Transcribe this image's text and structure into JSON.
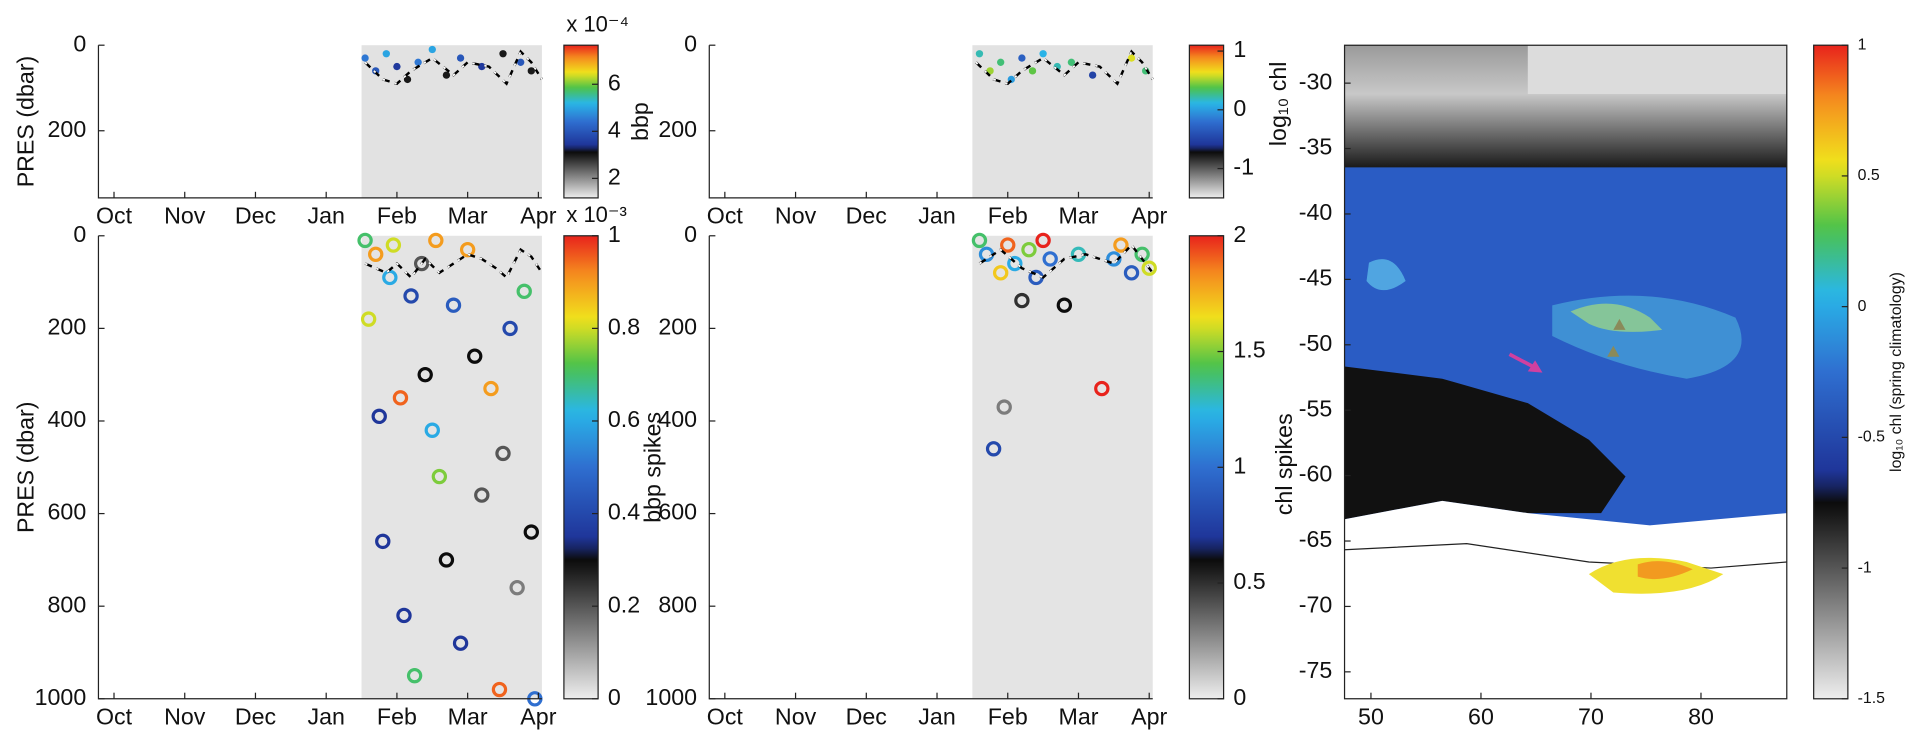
{
  "chart_data": [
    {
      "type": "scatter",
      "xlim": [
        -0.22,
        6.05
      ],
      "ylim": [
        0,
        357
      ],
      "xticks": [
        {
          "value": 0,
          "label": "Oct"
        },
        {
          "value": 1,
          "label": "Nov"
        },
        {
          "value": 2,
          "label": "Dec"
        },
        {
          "value": 3,
          "label": "Jan"
        },
        {
          "value": 4,
          "label": "Feb"
        },
        {
          "value": 5,
          "label": "Mar"
        },
        {
          "value": 6,
          "label": "Apr"
        }
      ],
      "yticks": [
        0,
        200
      ],
      "ylabel": "PRES (dbar)",
      "colorbar": {
        "label": "bbp",
        "multiplier": "x 10⁻⁴",
        "clim": [
          1.17,
          7.66
        ],
        "ticks": [
          2,
          4,
          6
        ]
      },
      "points": {
        "x": [
          3.55,
          3.7,
          3.85,
          4.0,
          4.15,
          4.3,
          4.5,
          4.7,
          4.9,
          5.2,
          5.5,
          5.75,
          5.9
        ],
        "y": [
          30,
          60,
          20,
          50,
          80,
          40,
          10,
          70,
          30,
          50,
          20,
          40,
          60
        ],
        "c": [
          4.5,
          4,
          5,
          3.5,
          3,
          4.5,
          5,
          3,
          4,
          3.5,
          3,
          4,
          3
        ]
      },
      "line": {
        "x": [
          3.55,
          3.8,
          4.0,
          4.2,
          4.5,
          4.8,
          5.0,
          5.3,
          5.55,
          5.75,
          5.9,
          6.05
        ],
        "y": [
          40,
          80,
          90,
          60,
          30,
          70,
          40,
          50,
          90,
          15,
          40,
          80
        ]
      }
    },
    {
      "type": "scatter",
      "xlim": [
        -0.22,
        6.05
      ],
      "ylim": [
        0,
        357
      ],
      "xticks": [
        {
          "value": 0,
          "label": "Oct"
        },
        {
          "value": 1,
          "label": "Nov"
        },
        {
          "value": 2,
          "label": "Dec"
        },
        {
          "value": 3,
          "label": "Jan"
        },
        {
          "value": 4,
          "label": "Feb"
        },
        {
          "value": 5,
          "label": "Mar"
        },
        {
          "value": 6,
          "label": "Apr"
        }
      ],
      "yticks": [
        0,
        200
      ],
      "colorbar": {
        "clim": [
          -1.5,
          1.1
        ],
        "ticks": [
          -1,
          0,
          1
        ]
      },
      "points": {
        "x": [
          3.6,
          3.75,
          3.9,
          4.05,
          4.2,
          4.35,
          4.5,
          4.7,
          4.9,
          5.2,
          5.75,
          5.95
        ],
        "y": [
          20,
          60,
          40,
          80,
          30,
          60,
          20,
          50,
          40,
          70,
          30,
          60
        ],
        "c": [
          0.2,
          0.5,
          0.3,
          0,
          -0.3,
          0.4,
          0.1,
          0.2,
          0.3,
          -0.5,
          0.6,
          0.3
        ]
      },
      "line": {
        "x": [
          3.55,
          3.8,
          4.0,
          4.2,
          4.5,
          4.8,
          5.0,
          5.3,
          5.55,
          5.75,
          5.9,
          6.05
        ],
        "y": [
          40,
          80,
          90,
          60,
          30,
          70,
          40,
          50,
          90,
          15,
          40,
          80
        ]
      }
    },
    {
      "type": "scatter",
      "xlim": [
        -0.22,
        6.05
      ],
      "ylim": [
        0,
        1000
      ],
      "xticks": [
        {
          "value": 0,
          "label": "Oct"
        },
        {
          "value": 1,
          "label": "Nov"
        },
        {
          "value": 2,
          "label": "Dec"
        },
        {
          "value": 3,
          "label": "Jan"
        },
        {
          "value": 4,
          "label": "Feb"
        },
        {
          "value": 5,
          "label": "Mar"
        },
        {
          "value": 6,
          "label": "Apr"
        }
      ],
      "yticks": [
        0,
        200,
        400,
        600,
        800,
        1000
      ],
      "ylabel": "PRES (dbar)",
      "colorbar": {
        "multiplier": "x 10⁻³",
        "clim": [
          0,
          1
        ],
        "ticks": [
          0,
          0.2,
          0.4,
          0.6,
          0.8,
          1
        ]
      },
      "points": {
        "x": [
          3.55,
          3.6,
          3.7,
          3.75,
          3.8,
          3.9,
          3.95,
          4.05,
          4.1,
          4.2,
          4.25,
          4.35,
          4.4,
          4.5,
          4.55,
          4.6,
          4.7,
          4.8,
          4.9,
          5.0,
          5.1,
          5.2,
          5.33,
          5.45,
          5.5,
          5.6,
          5.7,
          5.8,
          5.9,
          5.95
        ],
        "y": [
          10,
          180,
          40,
          390,
          660,
          90,
          20,
          350,
          820,
          130,
          950,
          60,
          300,
          420,
          10,
          520,
          700,
          150,
          880,
          30,
          260,
          560,
          330,
          980,
          470,
          200,
          760,
          120,
          640,
          1000
        ],
        "c": [
          0.7,
          0.8,
          0.9,
          0.35,
          0.35,
          0.6,
          0.8,
          0.95,
          0.35,
          0.4,
          0.7,
          0.2,
          0.3,
          0.6,
          0.9,
          0.75,
          0.3,
          0.45,
          0.35,
          0.9,
          0.3,
          0.2,
          0.9,
          0.95,
          0.2,
          0.4,
          0.15,
          0.7,
          0.3,
          0.5
        ]
      },
      "line": {
        "x": [
          3.55,
          3.7,
          3.85,
          4.0,
          4.2,
          4.4,
          4.6,
          4.8,
          5.0,
          5.2,
          5.4,
          5.55,
          5.75,
          5.9,
          6.05
        ],
        "y": [
          60,
          70,
          80,
          60,
          90,
          50,
          80,
          60,
          40,
          50,
          70,
          90,
          30,
          45,
          80
        ]
      }
    },
    {
      "type": "scatter",
      "xlim": [
        -0.22,
        6.05
      ],
      "ylim": [
        0,
        1000
      ],
      "xticks": [
        {
          "value": 0,
          "label": "Oct"
        },
        {
          "value": 1,
          "label": "Nov"
        },
        {
          "value": 2,
          "label": "Dec"
        },
        {
          "value": 3,
          "label": "Jan"
        },
        {
          "value": 4,
          "label": "Feb"
        },
        {
          "value": 5,
          "label": "Mar"
        },
        {
          "value": 6,
          "label": "Apr"
        }
      ],
      "yticks": [
        0,
        200,
        400,
        600,
        800,
        1000
      ],
      "ylabel": "bbp spikes",
      "colorbar": {
        "clim": [
          0,
          2
        ],
        "ticks": [
          0,
          0.5,
          1,
          1.5,
          2
        ]
      },
      "points": {
        "x": [
          3.6,
          3.7,
          3.8,
          3.9,
          3.95,
          4.0,
          4.1,
          4.2,
          4.3,
          4.4,
          4.5,
          4.6,
          4.8,
          5.0,
          5.33,
          5.5,
          5.6,
          5.75,
          5.9,
          6.0
        ],
        "y": [
          10,
          40,
          460,
          80,
          370,
          20,
          60,
          140,
          30,
          90,
          10,
          50,
          150,
          40,
          330,
          50,
          20,
          80,
          40,
          70
        ],
        "c": [
          1.4,
          1.1,
          0.8,
          1.7,
          0.3,
          1.9,
          1.2,
          0.5,
          1.5,
          0.9,
          2,
          1.0,
          0.6,
          1.3,
          2,
          1.1,
          1.8,
          0.9,
          1.4,
          1.6
        ]
      },
      "line": {
        "x": [
          3.6,
          3.9,
          4.2,
          4.5,
          4.8,
          5.1,
          5.5,
          5.75,
          5.9,
          6.05
        ],
        "y": [
          60,
          30,
          70,
          90,
          50,
          40,
          60,
          20,
          50,
          80
        ]
      }
    },
    {
      "type": "map",
      "xlim": [
        47.6,
        87.8
      ],
      "ylim": [
        -27.1,
        -77.06
      ],
      "xticks": [
        50,
        60,
        70,
        80
      ],
      "yticks": [
        -30,
        -35,
        -40,
        -45,
        -50,
        -55,
        -60,
        -65,
        -70,
        -75
      ],
      "side_labels": [
        "log₁₀ chl",
        "chl spikes"
      ],
      "colorbar": {
        "label": "log₁₀ chl (spring climatology)",
        "clim": [
          -1.5,
          1
        ],
        "ticks": [
          1,
          0.5,
          0,
          -0.5,
          -1,
          -1.5
        ]
      }
    }
  ]
}
